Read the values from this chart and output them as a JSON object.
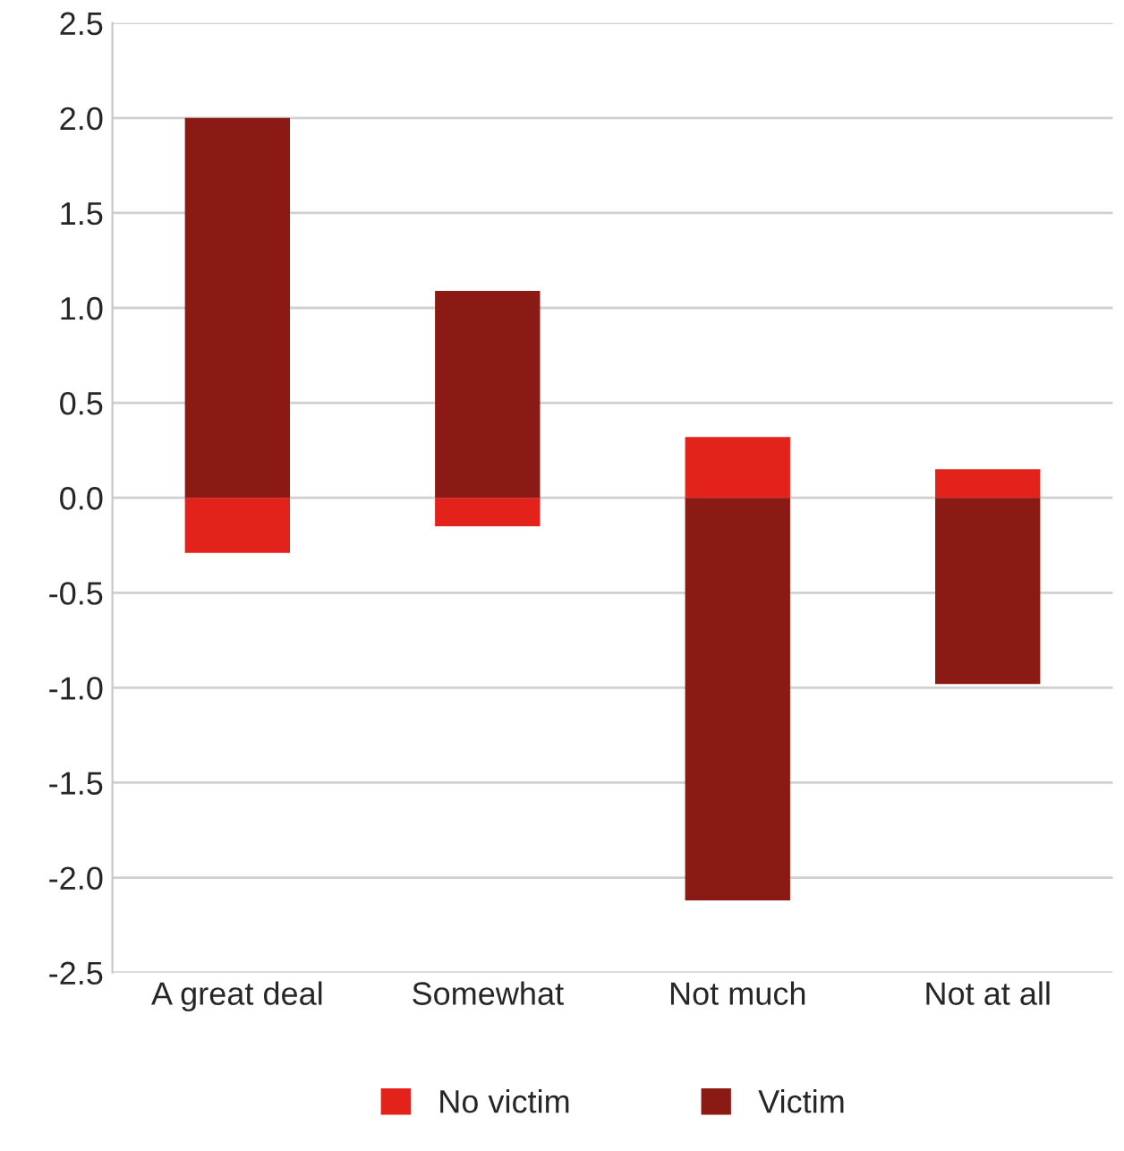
{
  "chart_data": {
    "type": "bar",
    "stacked": true,
    "categories": [
      "A great deal",
      "Somewhat",
      "Not much",
      "Not at all"
    ],
    "series": [
      {
        "name": "No victim",
        "color": "#e3221b",
        "values": [
          -0.29,
          -0.15,
          0.32,
          0.15
        ]
      },
      {
        "name": "Victim",
        "color": "#8b1a14",
        "values": [
          2.0,
          1.09,
          -2.12,
          -0.98
        ]
      }
    ],
    "ylim": [
      -2.5,
      2.5
    ],
    "yticks": [
      {
        "value": -2.5,
        "label": "-2.5"
      },
      {
        "value": -2.0,
        "label": "-2.0"
      },
      {
        "value": -1.5,
        "label": "-1.5"
      },
      {
        "value": -1.0,
        "label": "-1.0"
      },
      {
        "value": -0.5,
        "label": "-0.5"
      },
      {
        "value": 0.0,
        "label": "0.0"
      },
      {
        "value": 0.5,
        "label": "0.5"
      },
      {
        "value": 1.0,
        "label": "1.0"
      },
      {
        "value": 1.5,
        "label": "1.5"
      },
      {
        "value": 2.0,
        "label": "2.0"
      },
      {
        "value": 2.5,
        "label": "2.5"
      }
    ],
    "grid": "y",
    "legend": "bottom"
  }
}
